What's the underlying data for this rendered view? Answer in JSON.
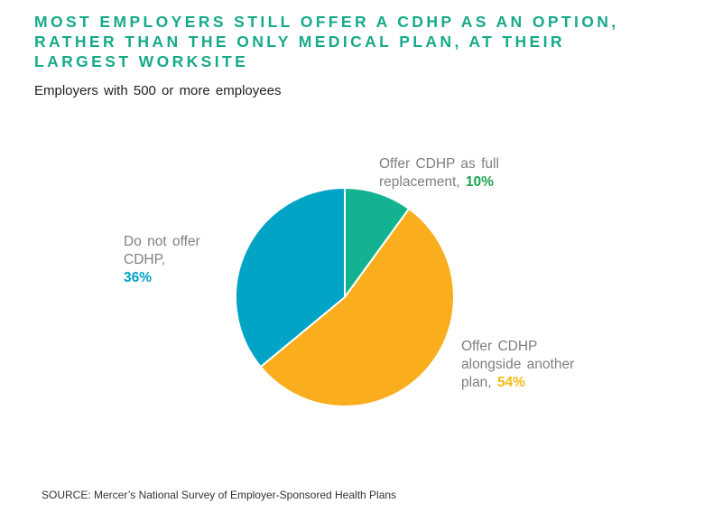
{
  "chart_data": {
    "type": "pie",
    "title": "MOST EMPLOYERS STILL OFFER A CDHP AS AN OPTION, RATHER THAN THE ONLY MEDICAL PLAN, AT THEIR LARGEST WORKSITE",
    "subtitle": "Employers with 500 or more employees",
    "slices": [
      {
        "label": "Offer CDHP as full replacement,",
        "value": 10,
        "value_label": "10%",
        "color": "#13b391",
        "label_color": "#1aa64e"
      },
      {
        "label": "Offer CDHP alongside another plan,",
        "value": 54,
        "value_label": "54%",
        "color": "#faae1d",
        "label_color": "#f2bd10"
      },
      {
        "label": "Do not offer CDHP,",
        "value": 36,
        "value_label": "36%",
        "color": "#01a4c4",
        "label_color": "#00a0c6"
      }
    ],
    "start_angle": "12 o'clock, clockwise",
    "source": "SOURCE:  Mercer’s National Survey of Employer-Sponsored Health Plans"
  }
}
